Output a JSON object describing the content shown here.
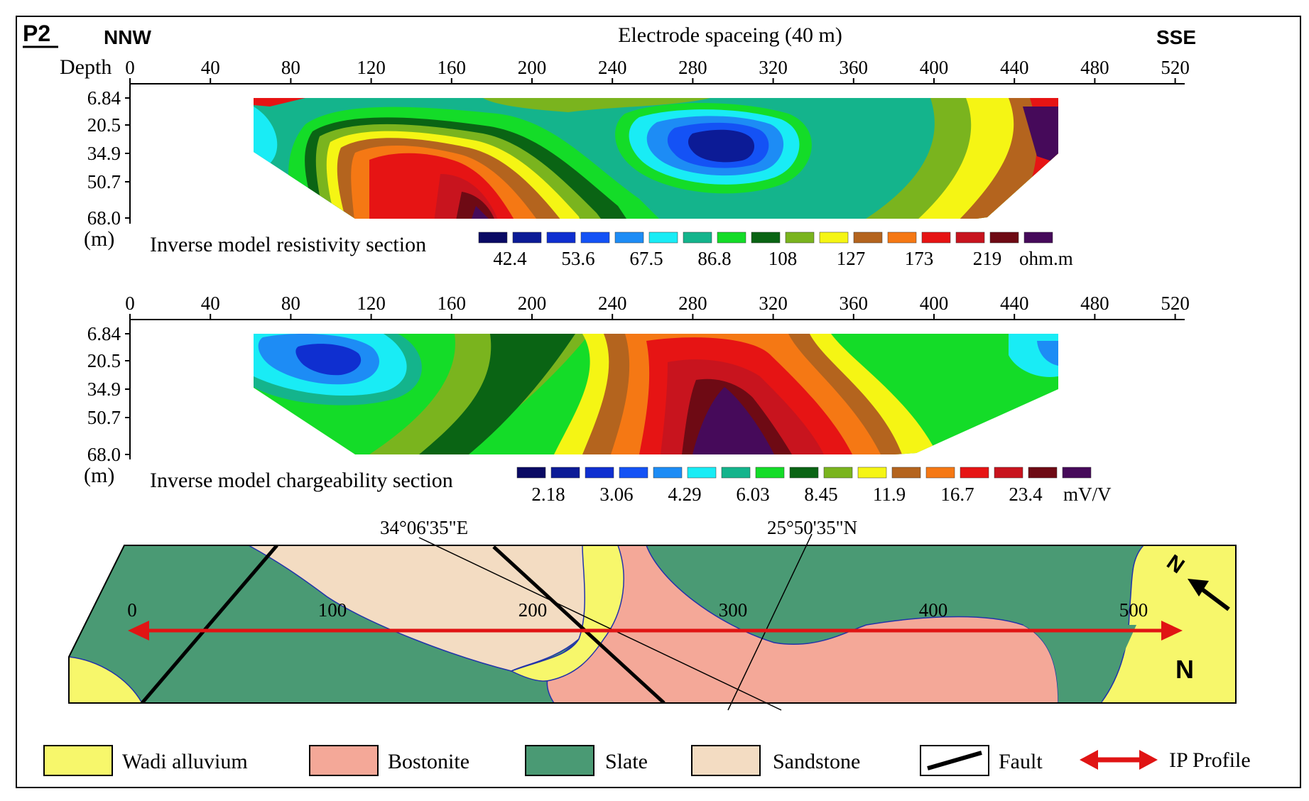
{
  "profile_label": "P2",
  "direction_left": "NNW",
  "direction_right": "SSE",
  "top_axis_title": "Electrode spaceing (40 m)",
  "depth_label": "Depth",
  "depth_unit": "(m)",
  "x_ticks": [
    "0",
    "40",
    "80",
    "120",
    "160",
    "200",
    "240",
    "280",
    "320",
    "360",
    "400",
    "440",
    "480",
    "520"
  ],
  "depth_ticks": [
    "6.84",
    "20.5",
    "34.9",
    "50.7",
    "68.0"
  ],
  "resistivity": {
    "title": "Inverse model resistivity section",
    "scale_colors": [
      "#0a0a64",
      "#0c1b96",
      "#0f2fd0",
      "#1452f5",
      "#1d8cf5",
      "#19ecf5",
      "#14b48c",
      "#14dc28",
      "#0a6414",
      "#7ab41e",
      "#f5f514",
      "#b4641e",
      "#f57814",
      "#e61414",
      "#c8141e",
      "#6e0a14",
      "#460a5a"
    ],
    "scale_labels": [
      "42.4",
      "53.6",
      "67.5",
      "86.8",
      "108",
      "127",
      "173",
      "219"
    ],
    "unit": "ohm.m"
  },
  "chargeability": {
    "title": "Inverse model chargeability section",
    "scale_colors": [
      "#0a0a64",
      "#0c1b96",
      "#0f2fd0",
      "#1452f5",
      "#1d8cf5",
      "#19ecf5",
      "#14b48c",
      "#14dc28",
      "#0a6414",
      "#7ab41e",
      "#f5f514",
      "#b4641e",
      "#f57814",
      "#e61414",
      "#c8141e",
      "#6e0a14",
      "#460a5a"
    ],
    "scale_labels": [
      "2.18",
      "3.06",
      "4.29",
      "6.03",
      "8.45",
      "11.9",
      "16.7",
      "23.4"
    ],
    "unit": "mV/V"
  },
  "map": {
    "longitude_label": "34°06'35\"E",
    "latitude_label": "25°50'35\"N",
    "distance_ticks": [
      "0",
      "100",
      "200",
      "300",
      "400",
      "500"
    ],
    "north_label": "N",
    "north_arrow_letter": "N"
  },
  "legend": [
    {
      "label": "Wadi alluvium",
      "color": "#f7f76b"
    },
    {
      "label": "Bostonite",
      "color": "#f4a898"
    },
    {
      "label": "Slate",
      "color": "#4a9a74"
    },
    {
      "label": "Sandstone",
      "color": "#f3dcc2"
    },
    {
      "label": "Fault",
      "color": "#000000"
    },
    {
      "label": "IP Profile",
      "color": "#e01414"
    }
  ]
}
